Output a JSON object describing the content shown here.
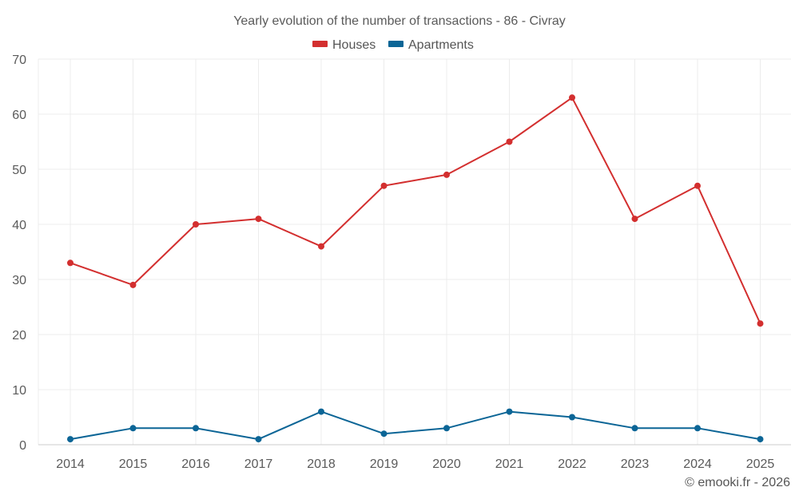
{
  "chart_data": {
    "type": "line",
    "title": "Yearly evolution of the number of transactions - 86 - Civray",
    "categories": [
      "2014",
      "2015",
      "2016",
      "2017",
      "2018",
      "2019",
      "2020",
      "2021",
      "2022",
      "2023",
      "2024",
      "2025"
    ],
    "series": [
      {
        "name": "Houses",
        "color": "#d32f2f",
        "values": [
          33,
          29,
          40,
          41,
          36,
          47,
          49,
          55,
          63,
          41,
          47,
          22
        ]
      },
      {
        "name": "Apartments",
        "color": "#0b6596",
        "values": [
          1,
          3,
          3,
          1,
          6,
          2,
          3,
          6,
          5,
          3,
          3,
          1
        ]
      }
    ],
    "ylim": [
      0,
      70
    ],
    "yticks": [
      "0",
      "10",
      "20",
      "30",
      "40",
      "50",
      "60",
      "70"
    ],
    "ytick_values": [
      0,
      10,
      20,
      30,
      40,
      50,
      60,
      70
    ],
    "xlabel": "",
    "ylabel": "",
    "grid": true,
    "legend_position": "top-center"
  },
  "credit": "© emooki.fr - 2026"
}
